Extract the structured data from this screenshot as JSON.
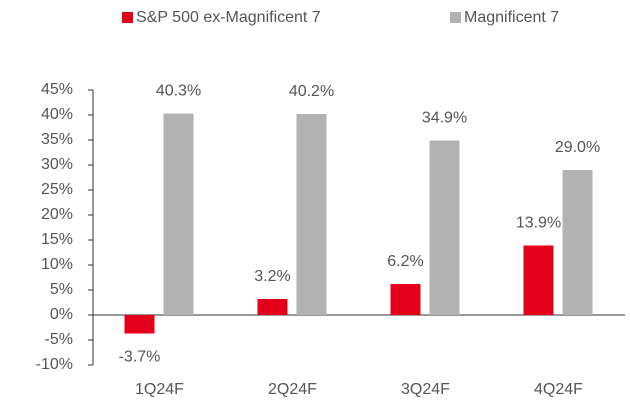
{
  "chart_data": {
    "type": "bar",
    "categories": [
      "1Q24F",
      "2Q24F",
      "3Q24F",
      "4Q24F"
    ],
    "series": [
      {
        "name": "S&P 500 ex-Magnificent 7",
        "color": "#e2001a",
        "values": [
          -3.7,
          3.2,
          6.2,
          13.9
        ],
        "value_labels": [
          "-3.7%",
          "3.2%",
          "6.2%",
          "13.9%"
        ]
      },
      {
        "name": "Magnificent 7",
        "color": "#b2b2b2",
        "values": [
          40.3,
          40.2,
          34.9,
          29.0
        ],
        "value_labels": [
          "40.3%",
          "40.2%",
          "34.9%",
          "29.0%"
        ]
      }
    ],
    "ylim": [
      -10,
      45
    ],
    "yticks": [
      {
        "value": -10,
        "label": "-10%"
      },
      {
        "value": -5,
        "label": "-5%"
      },
      {
        "value": 0,
        "label": "0%"
      },
      {
        "value": 5,
        "label": "5%"
      },
      {
        "value": 10,
        "label": "10%"
      },
      {
        "value": 15,
        "label": "15%"
      },
      {
        "value": 20,
        "label": "20%"
      },
      {
        "value": 25,
        "label": "25%"
      },
      {
        "value": 30,
        "label": "30%"
      },
      {
        "value": 35,
        "label": "35%"
      },
      {
        "value": 40,
        "label": "40%"
      },
      {
        "value": 45,
        "label": "45%"
      }
    ],
    "legend": "top"
  }
}
